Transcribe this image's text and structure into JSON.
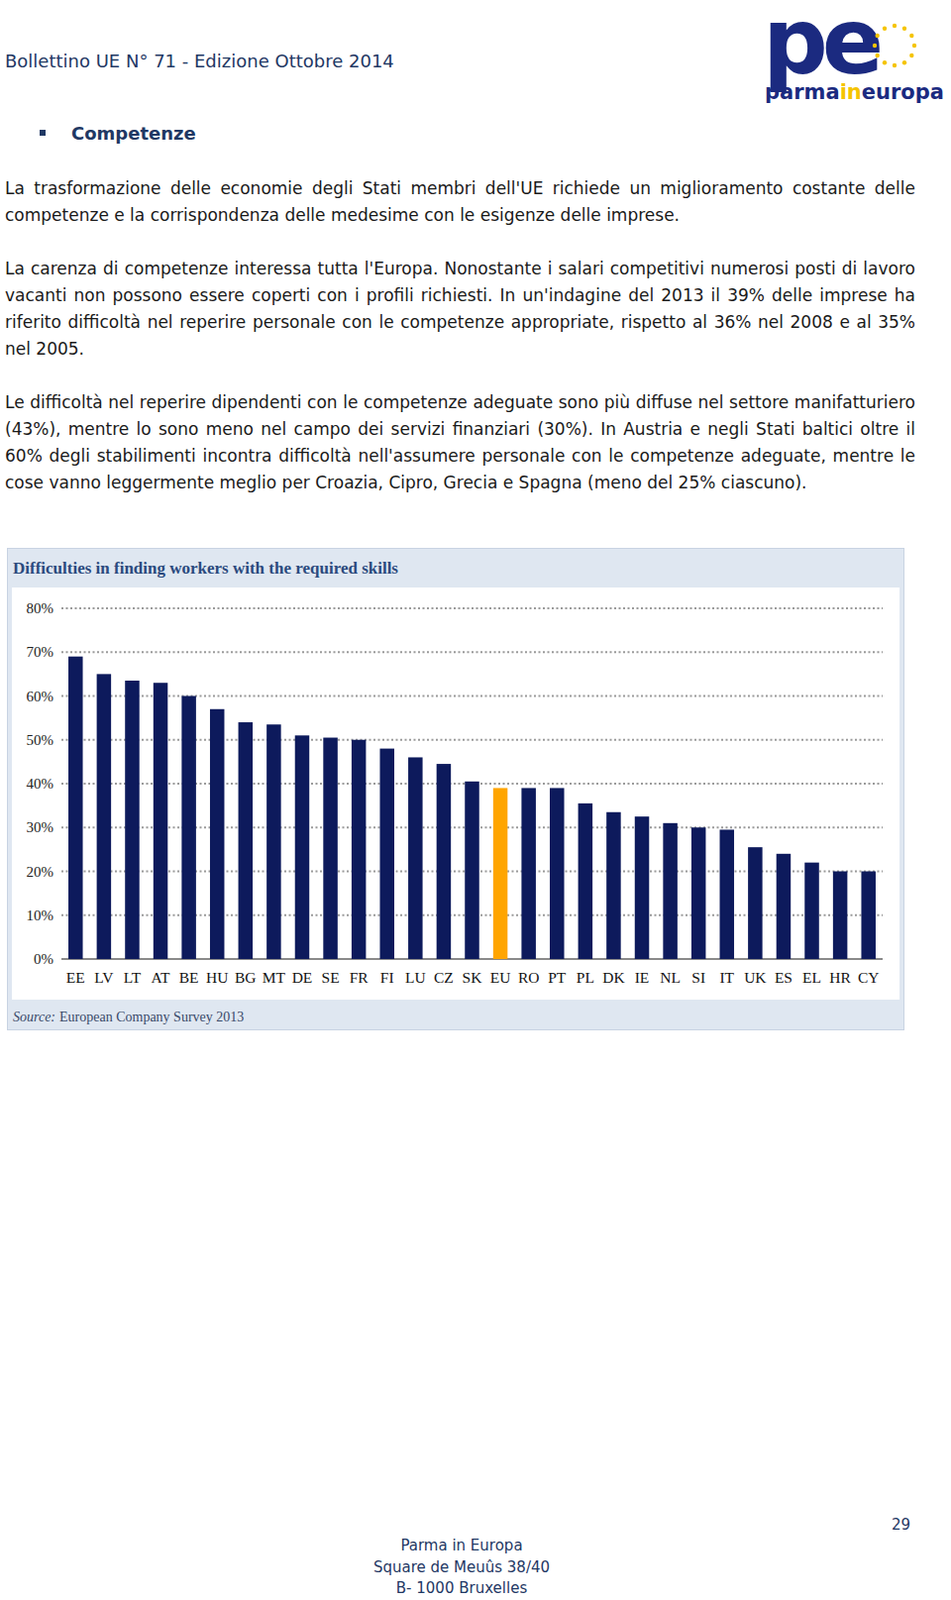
{
  "header": {
    "title": "Bollettino UE N° 71 - Edizione Ottobre 2014",
    "logo": {
      "mark": "pe",
      "parts": [
        "parma",
        "in",
        "europa"
      ]
    }
  },
  "section_title": "Competenze",
  "paragraphs": [
    "La trasformazione delle economie degli Stati membri dell'UE richiede un miglioramento costante delle competenze e la corrispondenza delle medesime con le esigenze delle imprese.",
    "La carenza di competenze interessa tutta l'Europa. Nonostante i salari competitivi numerosi posti di lavoro vacanti non possono essere coperti con i profili richiesti. In un'indagine del 2013 il 39% delle imprese ha riferito difficoltà nel reperire personale con le competenze appropriate, rispetto al 36% nel 2008 e al 35% nel 2005.",
    "Le difficoltà nel reperire dipendenti con le competenze adeguate sono più diffuse nel settore manifatturiero (43%), mentre lo sono meno nel campo dei servizi finanziari (30%). In Austria e negli Stati baltici oltre il 60% degli stabilimenti incontra difficoltà nell'assumere personale con le competenze adeguate, mentre le cose vanno leggermente meglio per Croazia, Cipro, Grecia e Spagna (meno del 25% ciascuno)."
  ],
  "chart_data": {
    "type": "bar",
    "title": "Difficulties in finding workers with the required skills",
    "categories": [
      "EE",
      "LV",
      "LT",
      "AT",
      "BE",
      "HU",
      "BG",
      "MT",
      "DE",
      "SE",
      "FR",
      "FI",
      "LU",
      "CZ",
      "SK",
      "EU",
      "RO",
      "PT",
      "PL",
      "DK",
      "IE",
      "NL",
      "SI",
      "IT",
      "UK",
      "ES",
      "EL",
      "HR",
      "CY"
    ],
    "values": [
      69,
      65,
      63.5,
      63,
      60,
      57,
      54,
      53.5,
      51,
      50.5,
      50,
      48,
      46,
      44.5,
      40.5,
      39,
      39,
      39,
      35.5,
      33.5,
      32.5,
      31,
      30,
      29.5,
      25.5,
      24,
      22,
      20,
      20
    ],
    "colors": [
      "#0d1a5c",
      "#0d1a5c",
      "#0d1a5c",
      "#0d1a5c",
      "#0d1a5c",
      "#0d1a5c",
      "#0d1a5c",
      "#0d1a5c",
      "#0d1a5c",
      "#0d1a5c",
      "#0d1a5c",
      "#0d1a5c",
      "#0d1a5c",
      "#0d1a5c",
      "#0d1a5c",
      "#ffa500",
      "#0d1a5c",
      "#0d1a5c",
      "#0d1a5c",
      "#0d1a5c",
      "#0d1a5c",
      "#0d1a5c",
      "#0d1a5c",
      "#0d1a5c",
      "#0d1a5c",
      "#0d1a5c",
      "#0d1a5c",
      "#0d1a5c",
      "#0d1a5c"
    ],
    "ylim": [
      0,
      80
    ],
    "yticks": [
      {
        "value": 0,
        "label": "0%"
      },
      {
        "value": 10,
        "label": "10%"
      },
      {
        "value": 20,
        "label": "20%"
      },
      {
        "value": 30,
        "label": "30%"
      },
      {
        "value": 40,
        "label": "40%"
      },
      {
        "value": 50,
        "label": "50%"
      },
      {
        "value": 60,
        "label": "60%"
      },
      {
        "value": 70,
        "label": "70%"
      },
      {
        "value": 80,
        "label": "80%"
      }
    ],
    "grid": true
  },
  "source": {
    "label": "Source:",
    "text": "European Company Survey 2013"
  },
  "footer": [
    "Parma in Europa",
    "Square de Meuûs 38/40",
    "B- 1000 Bruxelles"
  ],
  "page_number": "29"
}
